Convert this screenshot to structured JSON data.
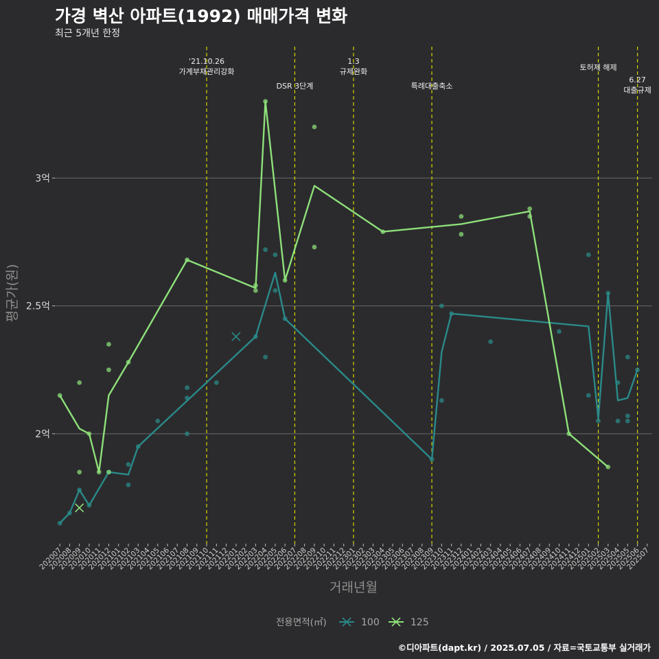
{
  "header": {
    "title": "가경 벽산 아파트(1992) 매매가격 변화",
    "subtitle": "최근 5개년 한정"
  },
  "footer": {
    "credit": "©디아파트(dapt.kr) / 2025.07.05 / 자료=국토교통부 실거래가"
  },
  "colors": {
    "background": "#2b2b2d",
    "grid": "#6a6a6a",
    "series_100": "#2a8a8a",
    "series_125": "#8ee07a",
    "event_line": "#d8d400"
  },
  "chart_data": {
    "type": "line",
    "title": "가경 벽산 아파트(1992) 매매가격 변화",
    "subtitle": "최근 5개년 한정",
    "xlabel": "거래년월",
    "ylabel": "평균가(원)",
    "ylim": [
      1.57,
      3.53
    ],
    "ytick_values": [
      2.0,
      2.5,
      3.0
    ],
    "yticks": [
      "2억",
      "2.5억",
      "3억"
    ],
    "grid": true,
    "legend": {
      "title": "전용면적(㎡)",
      "position": "bottom",
      "entries": [
        "100",
        "125"
      ]
    },
    "categories": [
      "202007",
      "202008",
      "202009",
      "202010",
      "202011",
      "202012",
      "202101",
      "202102",
      "202103",
      "202104",
      "202105",
      "202106",
      "202107",
      "202108",
      "202109",
      "202110",
      "202111",
      "202112",
      "202201",
      "202202",
      "202203",
      "202204",
      "202205",
      "202206",
      "202207",
      "202208",
      "202209",
      "202210",
      "202211",
      "202212",
      "202301",
      "202302",
      "202303",
      "202304",
      "202305",
      "202306",
      "202307",
      "202308",
      "202309",
      "202310",
      "202311",
      "202312",
      "202401",
      "202402",
      "202403",
      "202404",
      "202405",
      "202406",
      "202407",
      "202408",
      "202409",
      "202410",
      "202411",
      "202412",
      "202501",
      "202502",
      "202503",
      "202504",
      "202505",
      "202506",
      "202507"
    ],
    "series": [
      {
        "name": "100",
        "line": [
          [
            "202007",
            1.65
          ],
          [
            "202008",
            1.69
          ],
          [
            "202009",
            1.78
          ],
          [
            "202010",
            1.72
          ],
          [
            "202012",
            1.85
          ],
          [
            "202102",
            1.84
          ],
          [
            "202103",
            1.95
          ],
          [
            "202203",
            2.38
          ],
          [
            "202205",
            2.63
          ],
          [
            "202206",
            2.45
          ],
          [
            "202309",
            1.9
          ],
          [
            "202310",
            2.32
          ],
          [
            "202311",
            2.47
          ],
          [
            "202501",
            2.42
          ],
          [
            "202502",
            2.06
          ],
          [
            "202503",
            2.55
          ],
          [
            "202504",
            2.13
          ],
          [
            "202505",
            2.14
          ],
          [
            "202506",
            2.25
          ]
        ],
        "points": [
          [
            "202007",
            1.65
          ],
          [
            "202008",
            1.69
          ],
          [
            "202009",
            1.78
          ],
          [
            "202010",
            1.72
          ],
          [
            "202012",
            1.85
          ],
          [
            "202102",
            1.88
          ],
          [
            "202102",
            1.8
          ],
          [
            "202103",
            1.95
          ],
          [
            "202105",
            2.05
          ],
          [
            "202108",
            2.18
          ],
          [
            "202108",
            2.14
          ],
          [
            "202108",
            2.0
          ],
          [
            "202111",
            2.2
          ],
          [
            "202203",
            2.38
          ],
          [
            "202204",
            2.72
          ],
          [
            "202204",
            2.3
          ],
          [
            "202205",
            2.7
          ],
          [
            "202205",
            2.56
          ],
          [
            "202206",
            2.45
          ],
          [
            "202309",
            1.9
          ],
          [
            "202310",
            2.5
          ],
          [
            "202310",
            2.13
          ],
          [
            "202311",
            2.47
          ],
          [
            "202403",
            2.36
          ],
          [
            "202410",
            2.4
          ],
          [
            "202501",
            2.7
          ],
          [
            "202501",
            2.15
          ],
          [
            "202502",
            2.05
          ],
          [
            "202503",
            2.55
          ],
          [
            "202504",
            2.2
          ],
          [
            "202504",
            2.05
          ],
          [
            "202505",
            2.3
          ],
          [
            "202505",
            2.07
          ],
          [
            "202505",
            2.05
          ],
          [
            "202506",
            2.25
          ]
        ],
        "crosses": [
          [
            "202201",
            2.38
          ]
        ]
      },
      {
        "name": "125",
        "line": [
          [
            "202007",
            2.15
          ],
          [
            "202009",
            2.02
          ],
          [
            "202010",
            2.0
          ],
          [
            "202011",
            1.85
          ],
          [
            "202012",
            2.15
          ],
          [
            "202102",
            2.28
          ],
          [
            "202108",
            2.68
          ],
          [
            "202203",
            2.57
          ],
          [
            "202204",
            3.3
          ],
          [
            "202206",
            2.6
          ],
          [
            "202209",
            2.97
          ],
          [
            "202304",
            2.79
          ],
          [
            "202312",
            2.82
          ],
          [
            "202407",
            2.87
          ],
          [
            "202411",
            2.0
          ],
          [
            "202503",
            1.87
          ]
        ],
        "points": [
          [
            "202007",
            2.15
          ],
          [
            "202009",
            2.2
          ],
          [
            "202009",
            1.85
          ],
          [
            "202010",
            2.0
          ],
          [
            "202011",
            1.85
          ],
          [
            "202012",
            2.35
          ],
          [
            "202012",
            2.25
          ],
          [
            "202012",
            1.85
          ],
          [
            "202102",
            2.28
          ],
          [
            "202108",
            2.68
          ],
          [
            "202203",
            2.58
          ],
          [
            "202203",
            2.56
          ],
          [
            "202204",
            3.3
          ],
          [
            "202206",
            2.6
          ],
          [
            "202209",
            3.2
          ],
          [
            "202209",
            2.73
          ],
          [
            "202304",
            2.79
          ],
          [
            "202312",
            2.85
          ],
          [
            "202312",
            2.78
          ],
          [
            "202407",
            2.88
          ],
          [
            "202407",
            2.85
          ],
          [
            "202411",
            2.0
          ],
          [
            "202503",
            1.87
          ]
        ],
        "crosses": [
          [
            "202009",
            1.71
          ]
        ]
      }
    ],
    "events": [
      {
        "x": "202110",
        "label": [
          "'21.10.26",
          "가계부채관리강화"
        ],
        "row": 0
      },
      {
        "x": "202207",
        "label": [
          "DSR 3단계"
        ],
        "row": 2
      },
      {
        "x": "202301",
        "label": [
          "1.3",
          "규제완화"
        ],
        "row": 0
      },
      {
        "x": "202309",
        "label": [
          "특례대출축소"
        ],
        "row": 2
      },
      {
        "x": "202502",
        "label": [
          "토허제 해제"
        ],
        "row": 1
      },
      {
        "x": "202506",
        "label": [
          "6.27",
          "대출규제"
        ],
        "row": 2
      }
    ]
  }
}
